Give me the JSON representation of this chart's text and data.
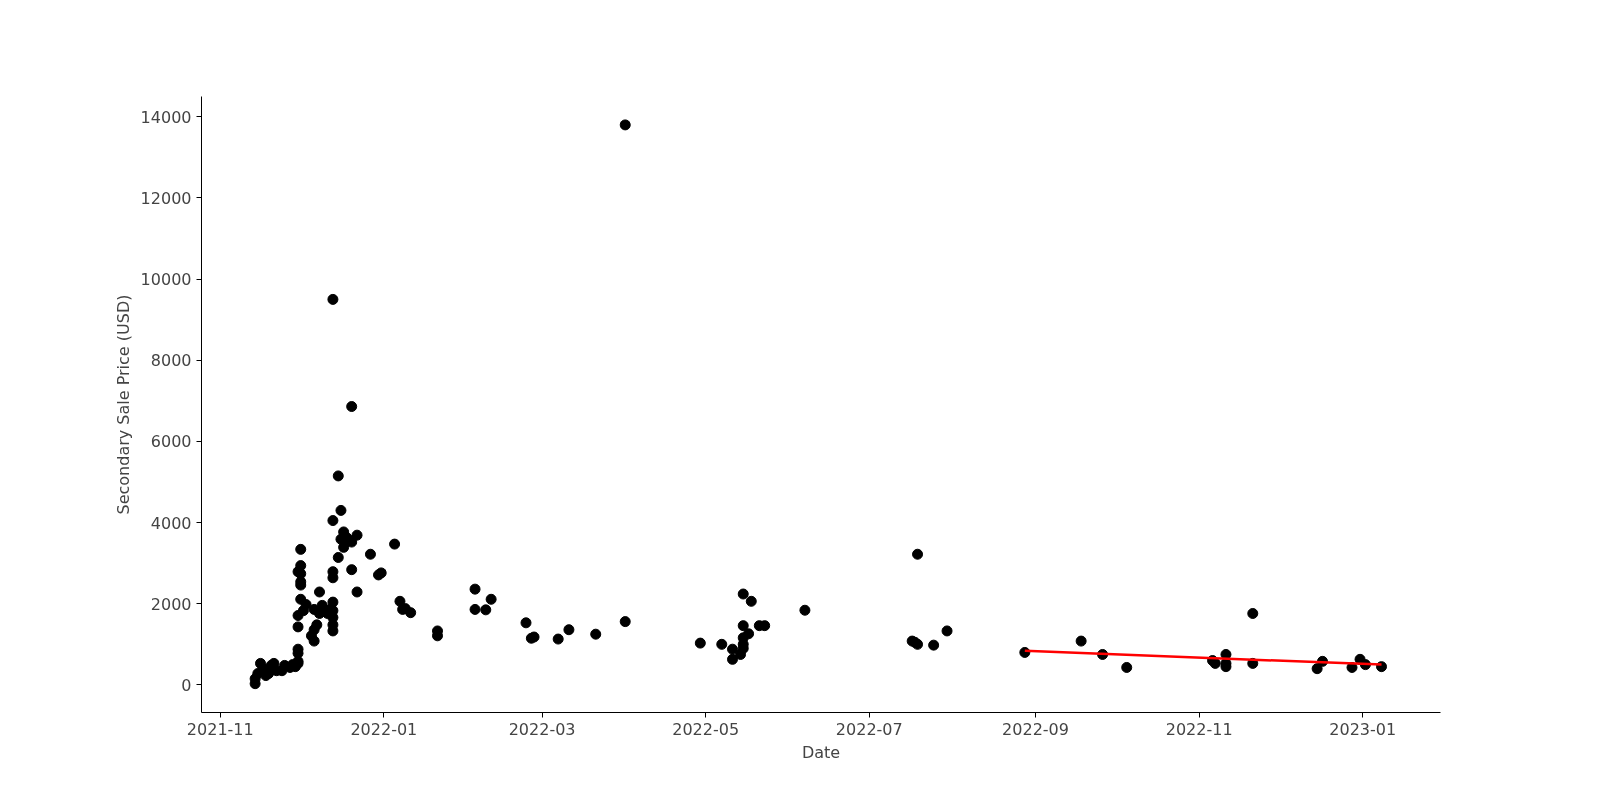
{
  "chart_data": {
    "type": "scatter",
    "xlabel": "Date",
    "ylabel": "Secondary Sale Price (USD)",
    "xlim": [
      "2021-10-25",
      "2023-01-30"
    ],
    "ylim": [
      -680,
      14500
    ],
    "xticks": [
      "2021-11",
      "2022-01",
      "2022-03",
      "2022-05",
      "2022-07",
      "2022-09",
      "2022-11",
      "2023-01"
    ],
    "yticks": [
      0,
      2000,
      4000,
      6000,
      8000,
      10000,
      12000,
      14000
    ],
    "grid": false,
    "series": [
      {
        "marker": "circle",
        "color": "#000000",
        "x": [
          "2021-11-14",
          "2021-11-14",
          "2021-11-15",
          "2021-11-16",
          "2021-11-17",
          "2021-11-18",
          "2021-11-19",
          "2021-11-20",
          "2021-11-21",
          "2021-11-22",
          "2021-11-24",
          "2021-11-25",
          "2021-11-27",
          "2021-11-28",
          "2021-11-29",
          "2021-11-30",
          "2021-11-30",
          "2021-11-30",
          "2021-11-30",
          "2021-11-30",
          "2021-11-30",
          "2021-11-30",
          "2021-12-01",
          "2021-12-01",
          "2021-12-01",
          "2021-12-01",
          "2021-12-01",
          "2021-12-01",
          "2021-12-02",
          "2021-12-03",
          "2021-12-05",
          "2021-12-06",
          "2021-12-06",
          "2021-12-07",
          "2021-12-06",
          "2021-12-08",
          "2021-12-08",
          "2021-12-09",
          "2021-12-11",
          "2021-12-12",
          "2021-12-13",
          "2021-12-13",
          "2021-12-13",
          "2021-12-13",
          "2021-12-13",
          "2021-12-13",
          "2021-12-13",
          "2021-12-13",
          "2021-12-13",
          "2021-12-15",
          "2021-12-15",
          "2021-12-16",
          "2021-12-16",
          "2021-12-17",
          "2021-12-17",
          "2021-12-18",
          "2021-12-19",
          "2021-12-20",
          "2021-12-20",
          "2021-12-20",
          "2021-12-22",
          "2021-12-22",
          "2021-12-27",
          "2021-12-30",
          "2021-12-31",
          "2022-01-05",
          "2022-01-07",
          "2022-01-08",
          "2022-01-09",
          "2022-01-11",
          "2022-01-21",
          "2022-01-21",
          "2022-02-04",
          "2022-02-04",
          "2022-02-08",
          "2022-02-10",
          "2022-02-23",
          "2022-02-25",
          "2022-02-26",
          "2022-03-07",
          "2022-03-11",
          "2022-03-21",
          "2022-04-01",
          "2022-04-01",
          "2022-04-29",
          "2022-05-07",
          "2022-05-11",
          "2022-05-11",
          "2022-05-14",
          "2022-05-15",
          "2022-05-15",
          "2022-05-15",
          "2022-05-15",
          "2022-05-15",
          "2022-05-17",
          "2022-05-18",
          "2022-05-21",
          "2022-05-23",
          "2022-06-07",
          "2022-07-17",
          "2022-07-19",
          "2022-07-18",
          "2022-07-19",
          "2022-07-25",
          "2022-07-30",
          "2022-08-28",
          "2022-09-18",
          "2022-09-26",
          "2022-10-05",
          "2022-11-06",
          "2022-11-07",
          "2022-11-11",
          "2022-11-11",
          "2022-11-11",
          "2022-11-21",
          "2022-11-21",
          "2022-12-15",
          "2022-12-17",
          "2022-12-28",
          "2022-12-31",
          "2023-01-02",
          "2023-01-08"
        ],
        "values": [
          30,
          150,
          280,
          530,
          400,
          230,
          280,
          480,
          530,
          350,
          350,
          480,
          430,
          500,
          450,
          580,
          780,
          880,
          530,
          1430,
          1710,
          2790,
          2740,
          2940,
          2540,
          2460,
          3340,
          2110,
          1830,
          1980,
          1210,
          1360,
          1080,
          1480,
          1860,
          2290,
          1760,
          1960,
          1760,
          1860,
          4050,
          9500,
          2040,
          1830,
          1660,
          1480,
          1330,
          2640,
          2790,
          5150,
          3140,
          4300,
          3590,
          3770,
          3390,
          3640,
          3570,
          6860,
          3520,
          2840,
          3690,
          2290,
          3220,
          2710,
          2760,
          3470,
          2060,
          1860,
          1880,
          1780,
          1330,
          1210,
          2360,
          1860,
          1850,
          2110,
          1530,
          1150,
          1180,
          1130,
          1360,
          1250,
          1560,
          13800,
          1030,
          1000,
          880,
          630,
          750,
          2240,
          1460,
          1160,
          900,
          1000,
          1260,
          2060,
          1460,
          1460,
          1840,
          1080,
          1000,
          1050,
          3220,
          980,
          1330,
          800,
          1080,
          750,
          430,
          600,
          530,
          750,
          450,
          530,
          1760,
          530,
          400,
          580,
          430,
          630,
          500,
          450
        ]
      },
      {
        "type": "line",
        "color": "#ff0000",
        "x": [
          "2022-08-28",
          "2023-01-08"
        ],
        "values": [
          840,
          500
        ]
      }
    ]
  }
}
